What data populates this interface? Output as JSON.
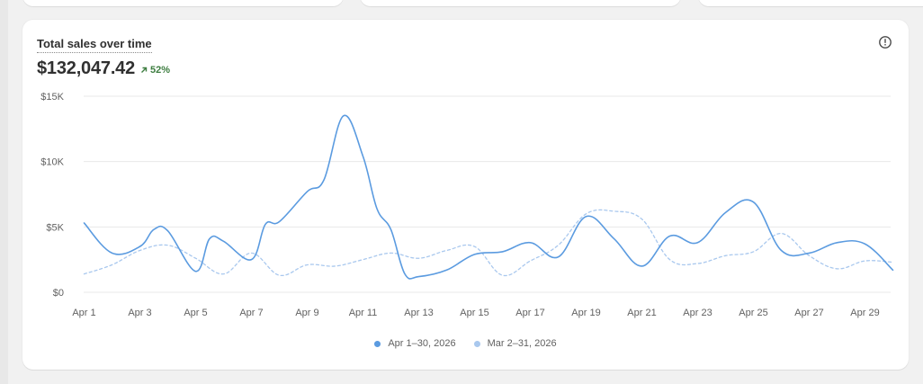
{
  "card": {
    "title": "Total sales over time",
    "total": "$132,047.42",
    "change": "52%"
  },
  "colors": {
    "current": "#5b9be0",
    "previous": "#a9c8ee",
    "grid": "#e8e8e8",
    "change": "#3d7d40"
  },
  "icons": {
    "info": "info-circle-icon",
    "change": "arrow-up-right-icon"
  },
  "chart_data": {
    "type": "line",
    "ylim": [
      0,
      15000
    ],
    "yticks": [
      0,
      5000,
      10000,
      15000
    ],
    "ytick_labels": [
      "$0",
      "$5K",
      "$10K",
      "$15K"
    ],
    "xticks": [
      1,
      3,
      5,
      7,
      9,
      11,
      13,
      15,
      17,
      19,
      21,
      23,
      25,
      27,
      29
    ],
    "xtick_labels": [
      "Apr 1",
      "Apr 3",
      "Apr 5",
      "Apr 7",
      "Apr 9",
      "Apr 11",
      "Apr 13",
      "Apr 15",
      "Apr 17",
      "Apr 19",
      "Apr 21",
      "Apr 23",
      "Apr 25",
      "Apr 27",
      "Apr 29"
    ],
    "xlim": [
      1,
      30
    ],
    "grid": true,
    "legend_position": "bottom",
    "series": [
      {
        "name": "Apr 1–30, 2026",
        "style": "solid",
        "x": [
          1,
          2,
          3,
          3.5,
          4,
          5,
          5.5,
          6,
          7,
          7.5,
          8,
          9,
          9.6,
          10.3,
          11,
          11.5,
          12,
          12.5,
          13,
          14,
          15,
          16,
          17,
          18,
          19,
          20,
          21,
          22,
          23,
          24,
          25,
          26,
          27,
          28,
          29,
          30
        ],
        "values": [
          5300,
          3000,
          3500,
          4800,
          4700,
          1600,
          4100,
          3900,
          2500,
          5200,
          5400,
          7700,
          8600,
          13500,
          10400,
          6400,
          4800,
          1400,
          1200,
          1700,
          2900,
          3100,
          3800,
          2700,
          5800,
          4100,
          2000,
          4300,
          3800,
          6100,
          6900,
          3200,
          3000,
          3800,
          3700,
          1700
        ]
      },
      {
        "name": "Mar 2–31, 2026",
        "style": "dashed",
        "x": [
          1,
          2,
          3,
          4,
          5,
          6,
          7,
          8,
          9,
          10,
          11,
          12,
          13,
          14,
          15,
          16,
          17,
          18,
          19,
          20,
          21,
          22,
          23,
          24,
          25,
          26,
          27,
          28,
          29,
          30
        ],
        "values": [
          1400,
          2100,
          3200,
          3600,
          2600,
          1400,
          3000,
          1300,
          2100,
          2000,
          2500,
          3000,
          2600,
          3200,
          3500,
          1300,
          2400,
          3600,
          6000,
          6200,
          5600,
          2500,
          2200,
          2800,
          3100,
          4500,
          2800,
          1800,
          2400,
          2300
        ]
      }
    ]
  }
}
